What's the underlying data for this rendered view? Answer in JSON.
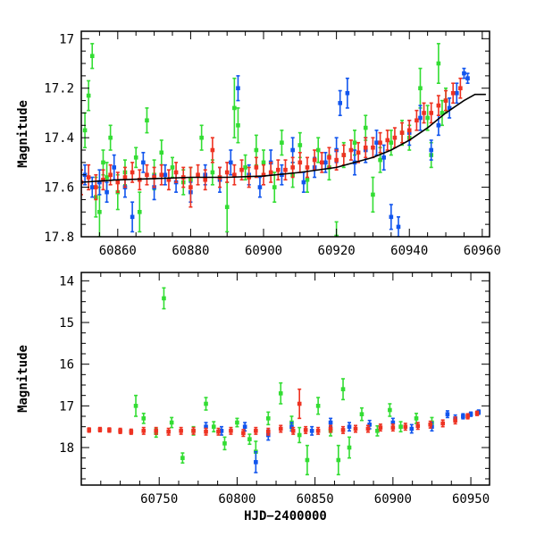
{
  "chart_data": [
    {
      "type": "scatter",
      "id": "top",
      "xlabel": "",
      "ylabel": "Magnitude",
      "xlim": [
        60850,
        60962
      ],
      "ylim": [
        17.8,
        16.97
      ],
      "y_inverted": true,
      "xticks": [
        60860,
        60880,
        60900,
        60920,
        60940,
        60960
      ],
      "yticks": [
        17,
        17.2,
        17.4,
        17.6,
        17.8
      ],
      "xtick_labels": [
        "60860",
        "60880",
        "60900",
        "60920",
        "60940",
        "60960"
      ],
      "ytick_labels": [
        "17",
        "17.2",
        "17.4",
        "17.6",
        "17.8"
      ],
      "model_curve": {
        "name": "model",
        "color": "#000000",
        "x": [
          60850,
          60860,
          60870,
          60880,
          60890,
          60900,
          60910,
          60920,
          60930,
          60935,
          60940,
          60945,
          60950,
          60955,
          60958,
          60961
        ],
        "y": [
          17.58,
          17.57,
          17.565,
          17.56,
          17.56,
          17.555,
          17.54,
          17.52,
          17.48,
          17.45,
          17.41,
          17.36,
          17.3,
          17.25,
          17.225,
          17.225
        ]
      },
      "series": [
        {
          "name": "green",
          "color": "#33dd33",
          "x": [
            60851,
            60852,
            60853,
            60854,
            60855,
            60856,
            60857,
            60858,
            60860,
            60862,
            60865,
            60866,
            60868,
            60870,
            60872,
            60875,
            60878,
            60880,
            60883,
            60886,
            60890,
            60892,
            60893,
            60895,
            60898,
            60900,
            60903,
            60905,
            60908,
            60910,
            60912,
            60915,
            60918,
            60920,
            60922,
            60925,
            60928,
            60930,
            60932,
            60935,
            60938,
            60940,
            60943,
            60945,
            60946,
            60948,
            60949,
            60950
          ],
          "y": [
            17.37,
            17.23,
            17.07,
            17.64,
            17.7,
            17.5,
            17.56,
            17.4,
            17.62,
            17.54,
            17.48,
            17.7,
            17.33,
            17.55,
            17.46,
            17.52,
            17.58,
            17.57,
            17.4,
            17.54,
            17.68,
            17.28,
            17.35,
            17.52,
            17.45,
            17.5,
            17.6,
            17.42,
            17.55,
            17.43,
            17.57,
            17.45,
            17.52,
            17.8,
            17.47,
            17.42,
            17.36,
            17.63,
            17.49,
            17.42,
            17.38,
            17.4,
            17.2,
            17.32,
            17.47,
            17.1,
            17.3,
            17.25
          ],
          "err": [
            0.07,
            0.06,
            0.05,
            0.08,
            0.1,
            0.05,
            0.06,
            0.05,
            0.07,
            0.05,
            0.04,
            0.08,
            0.05,
            0.06,
            0.05,
            0.04,
            0.05,
            0.05,
            0.05,
            0.05,
            0.1,
            0.12,
            0.07,
            0.05,
            0.06,
            0.05,
            0.06,
            0.05,
            0.05,
            0.05,
            0.05,
            0.05,
            0.05,
            0.06,
            0.05,
            0.05,
            0.05,
            0.07,
            0.05,
            0.05,
            0.05,
            0.05,
            0.08,
            0.05,
            0.05,
            0.08,
            0.05,
            0.05
          ]
        },
        {
          "name": "blue",
          "color": "#1155ee",
          "x": [
            60851,
            60853,
            60855,
            60857,
            60859,
            60862,
            60864,
            60867,
            60870,
            60873,
            60876,
            60880,
            60884,
            60888,
            60891,
            60893,
            60896,
            60899,
            60902,
            60905,
            60908,
            60911,
            60914,
            60917,
            60920,
            60921,
            60923,
            60925,
            60928,
            60931,
            60933,
            60935,
            60937,
            60940,
            60943,
            60946,
            60948,
            60951,
            60953,
            60955,
            60956
          ],
          "y": [
            17.55,
            17.6,
            17.58,
            17.62,
            17.52,
            17.6,
            17.72,
            17.5,
            17.6,
            17.55,
            17.58,
            17.62,
            17.55,
            17.57,
            17.5,
            17.2,
            17.55,
            17.6,
            17.5,
            17.55,
            17.45,
            17.58,
            17.52,
            17.5,
            17.45,
            17.26,
            17.22,
            17.5,
            17.45,
            17.42,
            17.48,
            17.72,
            17.76,
            17.38,
            17.32,
            17.45,
            17.35,
            17.28,
            17.22,
            17.14,
            17.16
          ],
          "err": [
            0.04,
            0.04,
            0.05,
            0.04,
            0.05,
            0.04,
            0.06,
            0.04,
            0.05,
            0.04,
            0.04,
            0.04,
            0.04,
            0.05,
            0.05,
            0.05,
            0.04,
            0.04,
            0.05,
            0.04,
            0.05,
            0.04,
            0.04,
            0.04,
            0.05,
            0.05,
            0.06,
            0.05,
            0.05,
            0.05,
            0.05,
            0.05,
            0.04,
            0.05,
            0.05,
            0.04,
            0.04,
            0.04,
            0.04,
            0.02,
            0.02
          ]
        },
        {
          "name": "red",
          "color": "#ee3322",
          "x": [
            60850,
            60852,
            60854,
            60856,
            60858,
            60860,
            60862,
            60864,
            60866,
            60868,
            60870,
            60872,
            60874,
            60876,
            60878,
            60880,
            60882,
            60884,
            60886,
            60888,
            60890,
            60892,
            60894,
            60896,
            60898,
            60900,
            60902,
            60904,
            60906,
            60908,
            60910,
            60912,
            60914,
            60916,
            60918,
            60920,
            60922,
            60924,
            60926,
            60928,
            60930,
            60932,
            60934,
            60936,
            60938,
            60940,
            60942,
            60944,
            60946,
            60948,
            60950,
            60952,
            60954
          ],
          "y": [
            17.58,
            17.56,
            17.6,
            17.57,
            17.55,
            17.58,
            17.56,
            17.54,
            17.57,
            17.55,
            17.56,
            17.55,
            17.57,
            17.54,
            17.56,
            17.6,
            17.55,
            17.57,
            17.45,
            17.56,
            17.54,
            17.55,
            17.53,
            17.56,
            17.52,
            17.55,
            17.54,
            17.53,
            17.53,
            17.52,
            17.5,
            17.52,
            17.49,
            17.5,
            17.48,
            17.49,
            17.47,
            17.45,
            17.46,
            17.44,
            17.44,
            17.42,
            17.41,
            17.4,
            17.38,
            17.37,
            17.33,
            17.3,
            17.3,
            17.27,
            17.25,
            17.22,
            17.2
          ],
          "err": [
            0.05,
            0.05,
            0.05,
            0.04,
            0.04,
            0.04,
            0.04,
            0.04,
            0.04,
            0.04,
            0.04,
            0.04,
            0.04,
            0.04,
            0.04,
            0.08,
            0.04,
            0.04,
            0.05,
            0.04,
            0.04,
            0.04,
            0.04,
            0.04,
            0.04,
            0.04,
            0.04,
            0.04,
            0.04,
            0.04,
            0.04,
            0.04,
            0.04,
            0.04,
            0.04,
            0.04,
            0.04,
            0.04,
            0.04,
            0.04,
            0.04,
            0.04,
            0.04,
            0.04,
            0.04,
            0.04,
            0.04,
            0.04,
            0.04,
            0.04,
            0.04,
            0.04,
            0.04
          ]
        }
      ]
    },
    {
      "type": "scatter",
      "id": "bottom",
      "xlabel": "HJD−2400000",
      "ylabel": "Magnitude",
      "xlim": [
        60700,
        60962
      ],
      "ylim": [
        18.9,
        13.8
      ],
      "y_inverted": true,
      "xticks": [
        60750,
        60800,
        60850,
        60900,
        60950
      ],
      "yticks": [
        14,
        15,
        16,
        17,
        18
      ],
      "xtick_labels": [
        "60750",
        "60800",
        "60850",
        "60900",
        "60950"
      ],
      "ytick_labels": [
        "14",
        "15",
        "16",
        "17",
        "18"
      ],
      "series": [
        {
          "name": "green",
          "color": "#33dd33",
          "x": [
            60735,
            60740,
            60748,
            60753,
            60758,
            60765,
            60772,
            60780,
            60785,
            60792,
            60800,
            60808,
            60812,
            60820,
            60828,
            60835,
            60840,
            60845,
            60852,
            60860,
            60865,
            60868,
            60872,
            60880,
            60890,
            60898,
            60905,
            60915,
            60925
          ],
          "y": [
            17.0,
            17.3,
            17.65,
            14.42,
            17.4,
            18.25,
            17.6,
            16.95,
            17.5,
            17.9,
            17.4,
            17.8,
            18.1,
            17.3,
            16.7,
            17.4,
            17.7,
            18.3,
            17.0,
            17.6,
            18.3,
            16.6,
            18.0,
            17.2,
            17.6,
            17.1,
            17.5,
            17.3,
            17.4
          ],
          "err": [
            0.25,
            0.12,
            0.1,
            0.25,
            0.12,
            0.12,
            0.1,
            0.15,
            0.12,
            0.15,
            0.1,
            0.12,
            0.25,
            0.15,
            0.25,
            0.15,
            0.18,
            0.35,
            0.2,
            0.12,
            0.35,
            0.25,
            0.25,
            0.15,
            0.12,
            0.15,
            0.12,
            0.12,
            0.12
          ]
        },
        {
          "name": "blue",
          "color": "#1155ee",
          "x": [
            60780,
            60790,
            60805,
            60812,
            60820,
            60835,
            60848,
            60860,
            60872,
            60885,
            60900,
            60912,
            60925,
            60935,
            60940,
            60945,
            60950,
            60955
          ],
          "y": [
            17.5,
            17.6,
            17.5,
            18.35,
            17.7,
            17.5,
            17.6,
            17.4,
            17.5,
            17.45,
            17.4,
            17.55,
            17.5,
            17.2,
            17.3,
            17.25,
            17.2,
            17.15
          ],
          "err": [
            0.1,
            0.1,
            0.1,
            0.25,
            0.12,
            0.1,
            0.1,
            0.1,
            0.1,
            0.1,
            0.1,
            0.1,
            0.1,
            0.08,
            0.08,
            0.06,
            0.05,
            0.05
          ]
        },
        {
          "name": "red",
          "color": "#ee3322",
          "x": [
            60705,
            60712,
            60718,
            60725,
            60732,
            60740,
            60748,
            60756,
            60764,
            60772,
            60780,
            60788,
            60796,
            60804,
            60812,
            60820,
            60828,
            60836,
            60840,
            60844,
            60852,
            60860,
            60868,
            60876,
            60884,
            60892,
            60900,
            60908,
            60916,
            60924,
            60932,
            60940,
            60948,
            60954
          ],
          "y": [
            17.58,
            17.57,
            17.58,
            17.6,
            17.62,
            17.6,
            17.6,
            17.62,
            17.6,
            17.6,
            17.62,
            17.62,
            17.6,
            17.65,
            17.6,
            17.62,
            17.55,
            17.6,
            16.95,
            17.58,
            17.6,
            17.55,
            17.58,
            17.55,
            17.55,
            17.52,
            17.52,
            17.5,
            17.48,
            17.45,
            17.42,
            17.35,
            17.25,
            17.18
          ],
          "err": [
            0.05,
            0.05,
            0.05,
            0.06,
            0.06,
            0.08,
            0.08,
            0.08,
            0.08,
            0.08,
            0.08,
            0.08,
            0.08,
            0.08,
            0.08,
            0.08,
            0.08,
            0.08,
            0.35,
            0.08,
            0.08,
            0.08,
            0.08,
            0.08,
            0.08,
            0.08,
            0.08,
            0.08,
            0.08,
            0.08,
            0.08,
            0.08,
            0.06,
            0.05
          ]
        }
      ]
    }
  ]
}
